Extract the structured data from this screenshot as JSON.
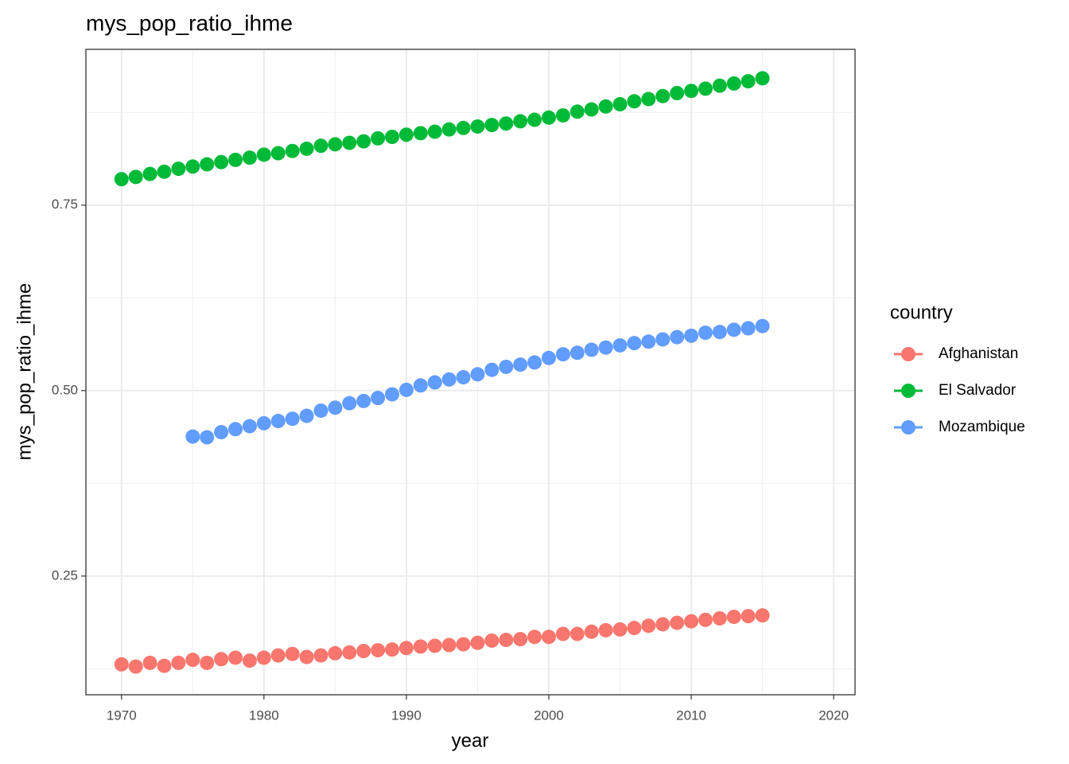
{
  "chart_data": {
    "type": "scatter",
    "title": "mys_pop_ratio_ihme",
    "x_label": "year",
    "y_label": "mys_pop_ratio_ihme",
    "legend_title": "country",
    "legend_position": "right",
    "grid": true,
    "minor_grid": true,
    "xlim": [
      1967.5,
      2021.5
    ],
    "ylim": [
      0.09,
      0.96
    ],
    "xticks": [
      1970,
      1980,
      1990,
      2000,
      2010,
      2020
    ],
    "yticks": [
      {
        "value": 0.25,
        "label": "0.25"
      },
      {
        "value": 0.5,
        "label": "0.50"
      },
      {
        "value": 0.75,
        "label": "0.75"
      }
    ],
    "x": [
      1970,
      1971,
      1972,
      1973,
      1974,
      1975,
      1976,
      1977,
      1978,
      1979,
      1980,
      1981,
      1982,
      1983,
      1984,
      1985,
      1986,
      1987,
      1988,
      1989,
      1990,
      1991,
      1992,
      1993,
      1994,
      1995,
      1996,
      1997,
      1998,
      1999,
      2000,
      2001,
      2002,
      2003,
      2004,
      2005,
      2006,
      2007,
      2008,
      2009,
      2010,
      2011,
      2012,
      2013,
      2014,
      2015
    ],
    "series": [
      {
        "name": "Afghanistan",
        "color": "#F8766D",
        "values": [
          0.131,
          0.128,
          0.133,
          0.129,
          0.133,
          0.137,
          0.133,
          0.138,
          0.14,
          0.136,
          0.14,
          0.143,
          0.145,
          0.141,
          0.143,
          0.146,
          0.147,
          0.149,
          0.15,
          0.151,
          0.153,
          0.155,
          0.156,
          0.157,
          0.158,
          0.16,
          0.163,
          0.164,
          0.165,
          0.168,
          0.168,
          0.172,
          0.172,
          0.175,
          0.177,
          0.178,
          0.18,
          0.183,
          0.185,
          0.187,
          0.189,
          0.191,
          0.193,
          0.195,
          0.196,
          0.197
        ]
      },
      {
        "name": "El Salvador",
        "color": "#00BA38",
        "values": [
          0.785,
          0.788,
          0.792,
          0.795,
          0.799,
          0.802,
          0.805,
          0.808,
          0.811,
          0.814,
          0.818,
          0.82,
          0.823,
          0.826,
          0.83,
          0.832,
          0.834,
          0.836,
          0.84,
          0.842,
          0.845,
          0.847,
          0.849,
          0.852,
          0.854,
          0.856,
          0.858,
          0.86,
          0.863,
          0.865,
          0.868,
          0.871,
          0.876,
          0.879,
          0.883,
          0.886,
          0.89,
          0.893,
          0.897,
          0.901,
          0.904,
          0.907,
          0.911,
          0.914,
          0.917,
          0.921
        ]
      },
      {
        "name": "Mozambique",
        "color": "#619CFF",
        "values": [
          null,
          null,
          null,
          null,
          null,
          0.438,
          0.437,
          0.444,
          0.448,
          0.452,
          0.456,
          0.459,
          0.462,
          0.466,
          0.473,
          0.477,
          0.483,
          0.486,
          0.49,
          0.495,
          0.501,
          0.507,
          0.511,
          0.515,
          0.518,
          0.522,
          0.528,
          0.532,
          0.535,
          0.538,
          0.544,
          0.549,
          0.551,
          0.555,
          0.558,
          0.561,
          0.564,
          0.566,
          0.569,
          0.572,
          0.574,
          0.578,
          0.579,
          0.582,
          0.584,
          0.587
        ]
      }
    ]
  }
}
